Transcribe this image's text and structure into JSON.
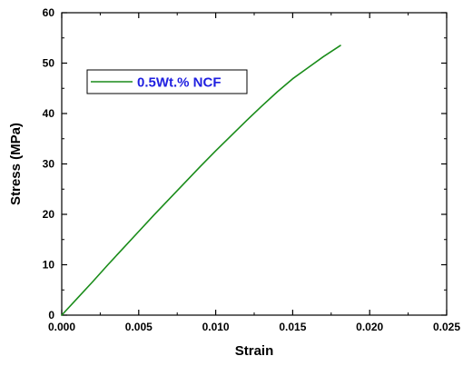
{
  "chart_data": {
    "type": "line",
    "title": "",
    "xlabel": "Strain",
    "ylabel": "Stress (MPa)",
    "xlim": [
      0,
      0.025
    ],
    "ylim": [
      0,
      60
    ],
    "x_ticks": [
      0,
      0.005,
      0.01,
      0.015,
      0.02,
      0.025
    ],
    "x_tick_labels": [
      "0.000",
      "0.005",
      "0.010",
      "0.015",
      "0.020",
      "0.025"
    ],
    "y_ticks": [
      0,
      10,
      20,
      30,
      40,
      50,
      60
    ],
    "y_tick_labels": [
      "0",
      "10",
      "20",
      "30",
      "40",
      "50",
      "60"
    ],
    "grid": false,
    "legend_position": "upper-left",
    "legend_text_color": "#1f1fe0",
    "series": [
      {
        "name": "0.5Wt.% NCF",
        "color": "#1a8c1a",
        "x": [
          0,
          0.001,
          0.002,
          0.003,
          0.004,
          0.005,
          0.006,
          0.007,
          0.008,
          0.009,
          0.01,
          0.011,
          0.012,
          0.013,
          0.014,
          0.015,
          0.016,
          0.017,
          0.018,
          0.0181
        ],
        "y": [
          0,
          3.3,
          6.6,
          10.0,
          13.3,
          16.6,
          19.9,
          23.1,
          26.3,
          29.5,
          32.6,
          35.6,
          38.6,
          41.5,
          44.3,
          46.9,
          49.1,
          51.3,
          53.3,
          53.5
        ]
      }
    ]
  }
}
